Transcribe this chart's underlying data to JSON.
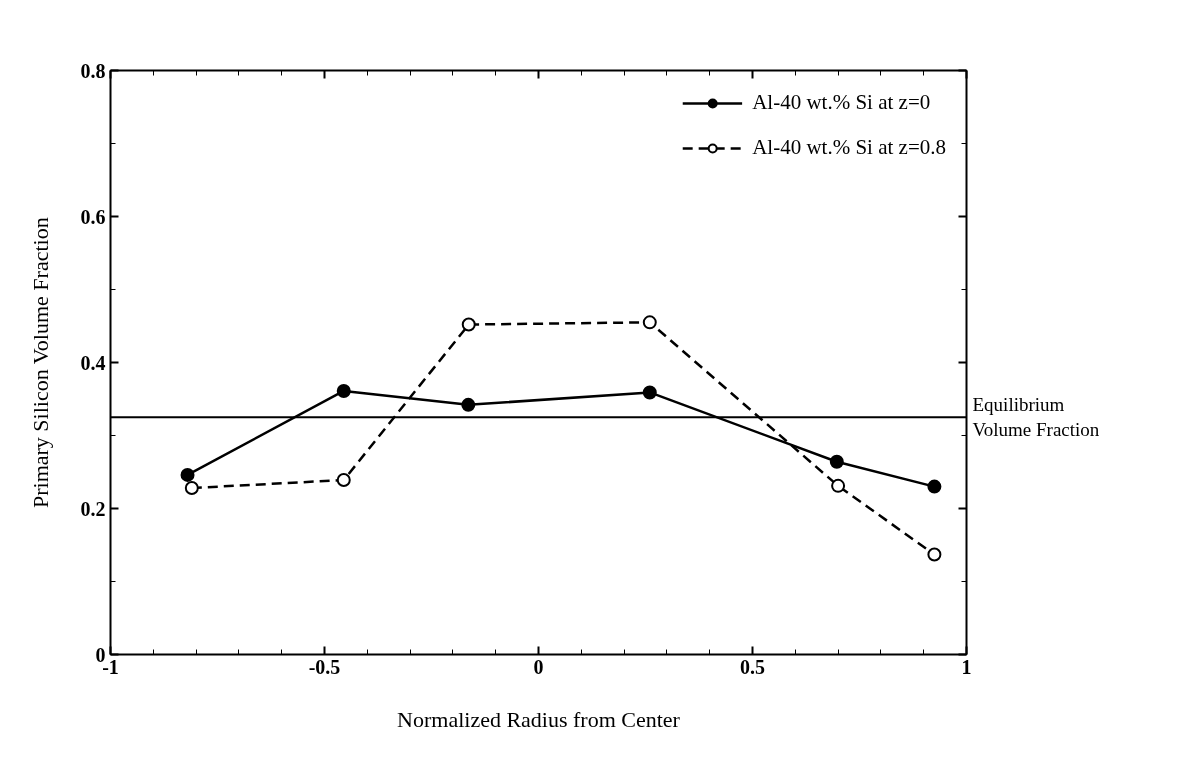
{
  "chart_data": {
    "type": "line",
    "xlabel": "Normalized Radius from Center",
    "ylabel": "Primary Silicon Volume Fraction",
    "xlim": [
      -1,
      1
    ],
    "ylim": [
      0,
      0.8
    ],
    "xticks": [
      {
        "value": -1,
        "label": "-1"
      },
      {
        "value": -0.5,
        "label": "-0.5"
      },
      0,
      0.5,
      1
    ],
    "yticks": [
      0,
      0.2,
      0.4,
      0.6,
      0.8
    ],
    "series": [
      {
        "name": "Al-40 wt.% Si at z=0",
        "color": "#000000",
        "line_style": "solid",
        "marker": "circle",
        "x": [
          -0.82,
          -0.455,
          -0.164,
          0.26,
          0.697,
          0.925
        ],
        "values": [
          0.246,
          0.361,
          0.342,
          0.359,
          0.264,
          0.23
        ]
      },
      {
        "name": "Al-40 wt.% Si at z=0.8",
        "color": "#000000",
        "line_style": "dashed",
        "marker": "open circle",
        "x": [
          -0.81,
          -0.455,
          -0.163,
          0.26,
          0.7,
          0.925
        ],
        "values": [
          0.228,
          0.239,
          0.452,
          0.455,
          0.231,
          0.137
        ]
      }
    ],
    "ref_lines": [
      {
        "axis": "y",
        "value": 0.325,
        "label": "Equilibrium\nVolume Fraction",
        "color": "#000000"
      }
    ],
    "legend": "top right",
    "grid": false
  }
}
